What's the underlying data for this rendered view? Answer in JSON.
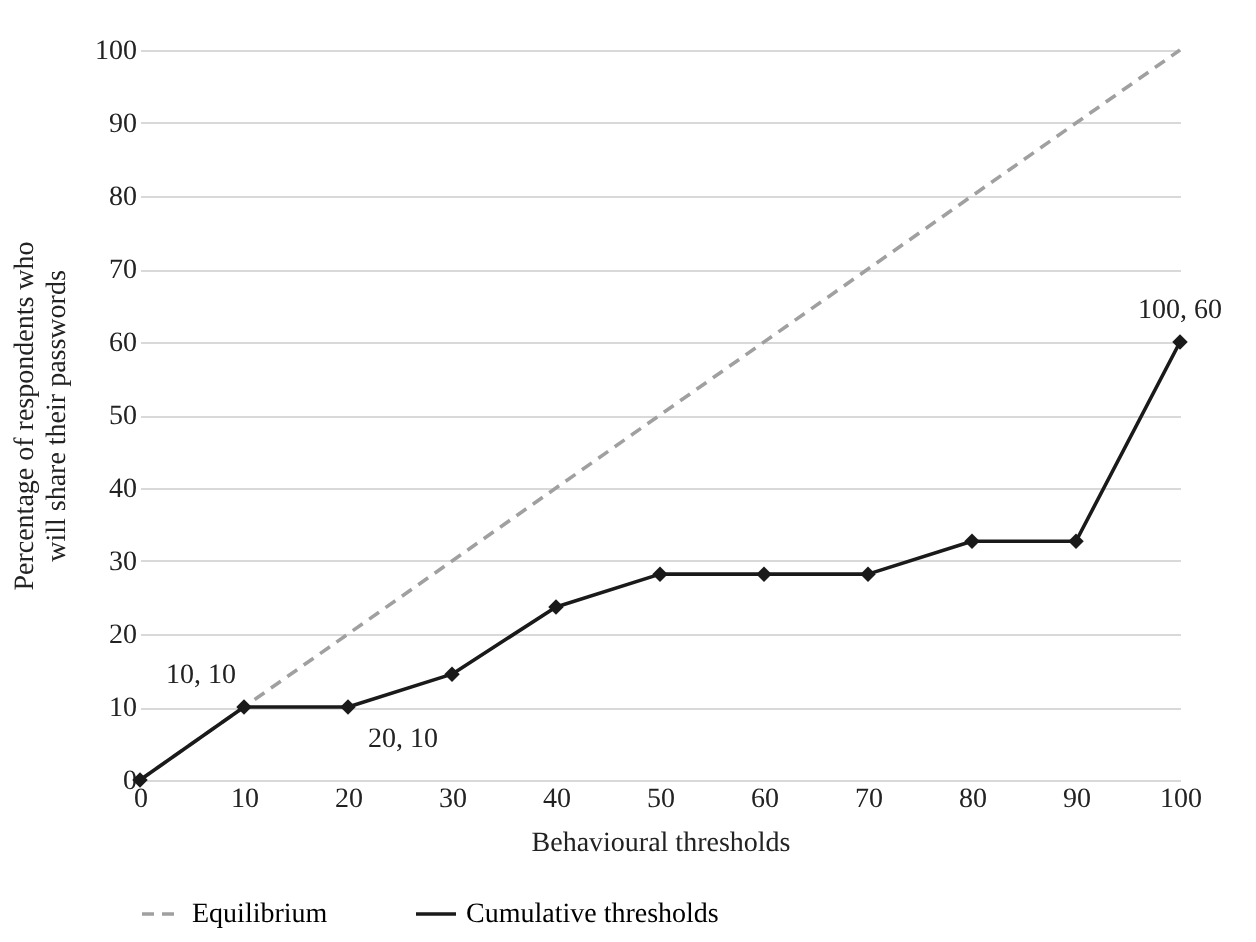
{
  "chart_data": {
    "type": "line",
    "xlabel": "Behavioural thresholds",
    "ylabel": "Percentage of respondents who will share their passwords",
    "x": [
      0,
      10,
      20,
      30,
      40,
      50,
      60,
      70,
      80,
      90,
      100
    ],
    "series": [
      {
        "name": "Equilibrium",
        "color": "#a0a0a0",
        "line_style": "dashed",
        "marker": "none",
        "x": [
          0,
          100
        ],
        "values": [
          0,
          100
        ]
      },
      {
        "name": "Cumulative thresholds",
        "color": "#1a1a1a",
        "line_style": "solid",
        "marker": "diamond",
        "values": [
          0,
          10,
          10,
          14.5,
          23.7,
          28.2,
          28.2,
          28.2,
          32.7,
          32.7,
          60
        ]
      }
    ],
    "xlim": [
      0,
      100
    ],
    "xticks": [
      0,
      10,
      20,
      30,
      40,
      50,
      60,
      70,
      80,
      90,
      100
    ],
    "ylim": [
      0,
      100
    ],
    "yticks": [
      0,
      10,
      20,
      30,
      40,
      50,
      60,
      70,
      80,
      90,
      100
    ],
    "grid": "y",
    "legend": "bottom",
    "annotations": [
      {
        "text": "10, 10",
        "x": 10,
        "y": 10
      },
      {
        "text": "20, 10",
        "x": 20,
        "y": 10
      },
      {
        "text": "100, 60",
        "x": 100,
        "y": 60
      }
    ]
  }
}
